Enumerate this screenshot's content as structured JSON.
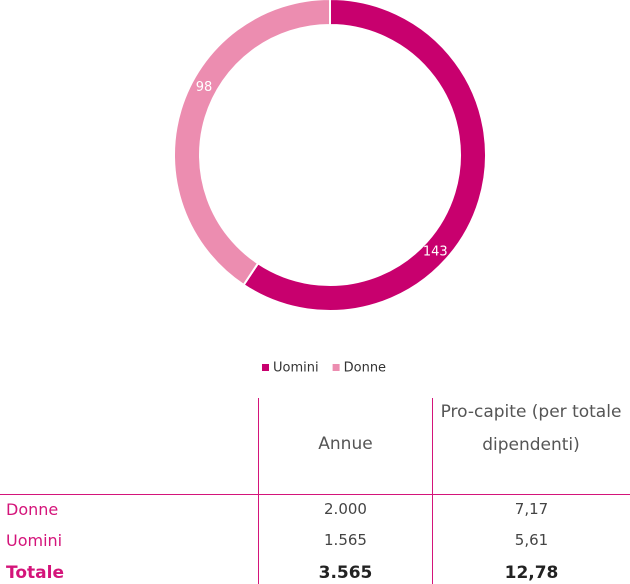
{
  "chart_data": {
    "type": "pie",
    "donut": true,
    "categories": [
      "Uomini",
      "Donne"
    ],
    "values": [
      143,
      98
    ],
    "colors": [
      "#c8006e",
      "#ec8db0"
    ],
    "legend": "bottom"
  },
  "table": {
    "header": [
      "Annue",
      "Pro-capite (per totale dipendenti)"
    ],
    "rows": [
      [
        "Donne",
        "2.000",
        "7,17"
      ],
      [
        "Uomini",
        "1.565",
        "5,61"
      ],
      [
        "Totale",
        "3.565",
        "12,78"
      ]
    ]
  }
}
